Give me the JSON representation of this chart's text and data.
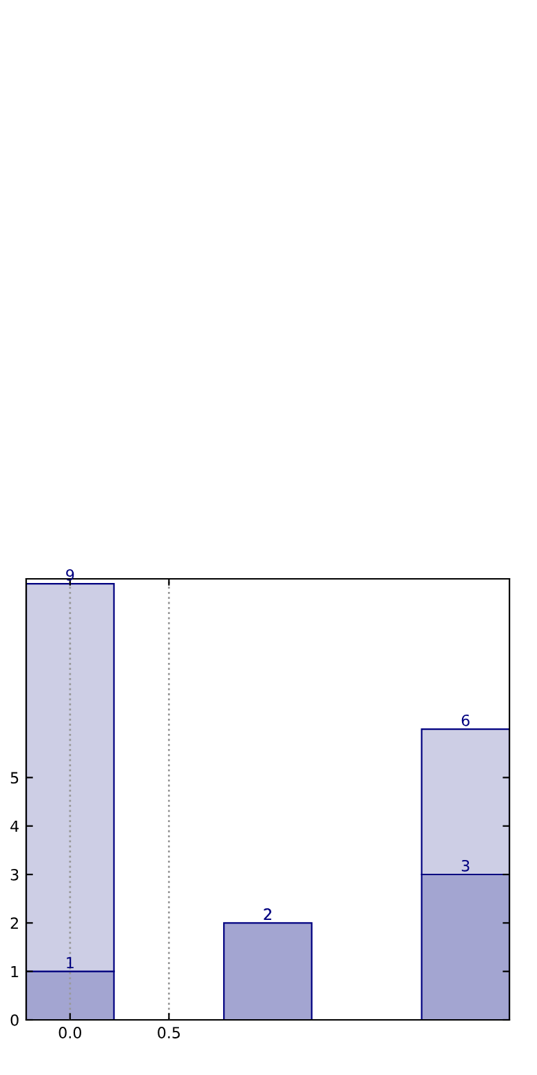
{
  "chart_data": {
    "type": "bar",
    "stacked": true,
    "x": [
      0,
      1,
      2
    ],
    "series": [
      {
        "color": "#a3a5d1",
        "values": [
          1,
          2,
          3
        ],
        "value_labels": [
          "1",
          "2",
          "3"
        ]
      },
      {
        "color": "#cdcee5",
        "values": [
          8,
          null,
          3
        ],
        "value_labels": [
          null,
          null,
          null
        ]
      }
    ],
    "totals": [
      "9",
      "2",
      "6"
    ],
    "xlim": [
      -0.222,
      2.222
    ],
    "ylim": [
      0,
      9.1
    ],
    "xticks": [
      {
        "value": 0,
        "label": "0.0"
      },
      {
        "value": 0.5,
        "label": "0.5"
      }
    ],
    "yticks": [
      0,
      1,
      2,
      3,
      4,
      5
    ],
    "grid": "x",
    "legend": false
  }
}
